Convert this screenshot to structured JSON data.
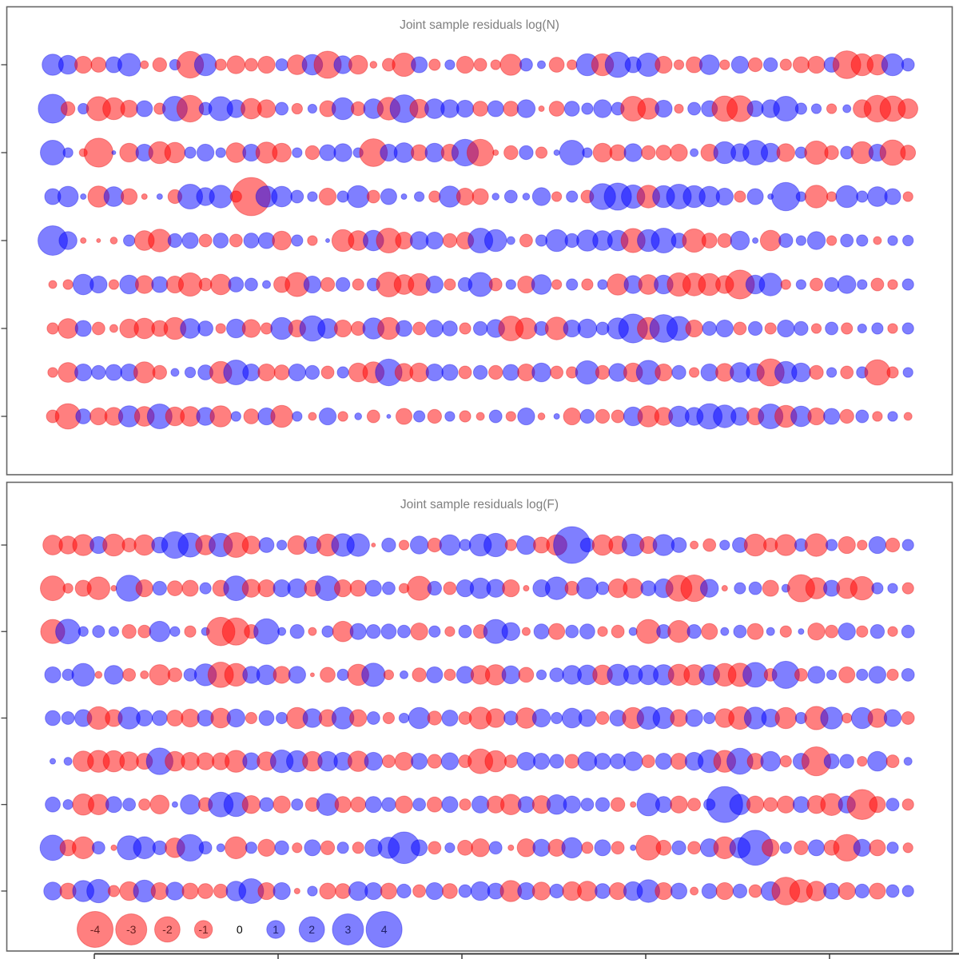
{
  "chart_data": {
    "type": "bubble",
    "description": "Two stacked bubble-residual panels; rows are ages (unlabeled axis ticks), columns are samples/years (unlabeled axis ticks). Red = negative residual, blue = positive residual; circle area proportional to |value|.",
    "colors": {
      "negative_fill": "rgba(255,0,0,0.5)",
      "positive_fill": "rgba(0,0,255,0.5)",
      "negative_stroke": "rgba(220,0,0,0.35)",
      "positive_stroke": "rgba(0,0,220,0.35)",
      "title_gray": "#7f7f7f",
      "panel_border": "#666666",
      "axis_dark": "#3b3b3b",
      "neg_label": "#6b2020",
      "pos_label": "#20206b",
      "zero_label": "#000000"
    },
    "legend": {
      "values": [
        -4,
        -3,
        -2,
        -1,
        0,
        1,
        2,
        3,
        4
      ]
    },
    "axes": {
      "y_ticks_per_panel": 5,
      "x_ticks_bottom": 5,
      "tick_labels_visible": false
    },
    "panels": [
      {
        "title": "Joint sample residuals log(N)",
        "rows": [
          [
            1.4,
            1.1,
            -0.9,
            -0.7,
            0.8,
            1.6,
            -0.2,
            -0.6,
            0.35,
            -2.2,
            1.5,
            -0.4,
            -1.0,
            -0.5,
            -0.9,
            0.45,
            -1.2,
            1.3,
            -2.3,
            1.0,
            -1.1,
            -0.15,
            -0.5,
            -1.7,
            0.8,
            -0.4,
            0.3,
            -0.9,
            -0.5,
            -0.3,
            -1.4,
            0.5,
            0.2,
            -0.7,
            -0.3,
            1.5,
            -1.5,
            2.0,
            0.8,
            1.7,
            -0.9,
            -0.3,
            -0.8,
            1.2,
            -0.3,
            0.9,
            -0.6,
            0.6,
            -0.4,
            -0.8,
            -0.9,
            0.7,
            -2.4,
            -1.5,
            -1.3,
            1.5,
            0.5
          ],
          [
            2.6,
            -0.6,
            0.35,
            -1.8,
            -1.5,
            -0.9,
            0.8,
            -0.4,
            1.9,
            -2.2,
            0.5,
            1.8,
            1.0,
            -1.3,
            -1.0,
            0.5,
            -0.35,
            0.25,
            -0.8,
            1.5,
            -0.6,
            1.2,
            -1.6,
            2.4,
            -1.1,
            1.2,
            1.0,
            0.9,
            -0.7,
            0.8,
            -0.7,
            1.0,
            -0.1,
            -0.7,
            0.7,
            0.4,
            1.0,
            0.5,
            -1.9,
            -1.4,
            0.9,
            -0.25,
            0.5,
            0.8,
            -2.0,
            -2.1,
            0.8,
            1.0,
            1.9,
            0.4,
            0.3,
            -0.3,
            0.2,
            -1.0,
            -2.2,
            -2.0,
            -1.2
          ],
          [
            1.9,
            0.3,
            -0.2,
            -2.6,
            0.05,
            -1.1,
            0.9,
            -1.5,
            -1.3,
            0.4,
            0.9,
            0.3,
            -1.2,
            0.9,
            -1.4,
            -1.1,
            0.3,
            -0.6,
            0.8,
            1.0,
            0.3,
            -2.4,
            0.9,
            1.2,
            -0.8,
            1.1,
            -0.9,
            2.2,
            -2.2,
            -0.1,
            -0.6,
            0.6,
            -0.4,
            0.1,
            1.9,
            0.3,
            -1.1,
            -0.8,
            1.0,
            -0.6,
            -0.7,
            -0.9,
            0.2,
            -0.9,
            1.5,
            1.0,
            1.9,
            1.1,
            -1.0,
            0.4,
            -1.7,
            -0.6,
            0.5,
            -1.5,
            0.9,
            -2.0,
            -0.7
          ],
          [
            0.8,
            1.3,
            0.1,
            -1.4,
            1.2,
            -0.8,
            -0.1,
            0.1,
            -0.6,
            1.9,
            1.0,
            1.6,
            -0.4,
            -4.5,
            1.4,
            1.3,
            0.5,
            0.3,
            -0.9,
            0.4,
            1.5,
            -0.5,
            0.8,
            0.1,
            0.3,
            -0.4,
            1.4,
            -0.9,
            -0.8,
            0.15,
            0.5,
            0.15,
            1.0,
            -0.3,
            0.4,
            -0.5,
            2.1,
            2.3,
            1.7,
            -1.6,
            1.5,
            1.9,
            1.5,
            1.3,
            0.9,
            -0.4,
            0.8,
            0.1,
            2.5,
            0.3,
            -1.6,
            -0.3,
            1.5,
            0.4,
            1.2,
            0.8,
            -0.3
          ],
          [
            2.7,
            1.0,
            -0.1,
            -0.05,
            -0.15,
            0.4,
            -1.2,
            -1.6,
            0.6,
            0.8,
            -0.5,
            0.7,
            -0.5,
            0.7,
            0.8,
            -1.1,
            0.4,
            -0.3,
            0.05,
            -1.5,
            -1.2,
            1.3,
            -1.9,
            -0.9,
            1.0,
            0.9,
            -0.6,
            -0.9,
            1.9,
            1.5,
            0.2,
            -0.5,
            0.4,
            1.5,
            0.6,
            1.4,
            1.2,
            1.3,
            -1.8,
            1.5,
            1.9,
            0.7,
            -1.7,
            -0.7,
            -0.6,
            1.1,
            0.1,
            -1.3,
            0.6,
            0.3,
            1.0,
            -0.3,
            0.5,
            0.4,
            -0.2,
            0.3,
            0.35
          ],
          [
            -0.2,
            -0.3,
            1.3,
            0.9,
            -0.3,
            1.1,
            -1.0,
            0.8,
            -0.9,
            -1.7,
            -0.5,
            -1.3,
            0.7,
            0.5,
            0.2,
            -0.8,
            -1.8,
            0.9,
            -0.6,
            0.6,
            -0.4,
            0.5,
            -1.9,
            -1.2,
            -1.5,
            0.9,
            -0.4,
            0.6,
            1.8,
            -0.5,
            0.3,
            -0.9,
            1.2,
            -0.3,
            0.4,
            -0.4,
            0.3,
            -1.4,
            1.0,
            -1.2,
            1.1,
            -1.7,
            -1.6,
            -1.5,
            -1.0,
            -2.6,
            1.1,
            1.6,
            -0.3,
            0.3,
            -0.5,
            0.6,
            1.0,
            0.3,
            -0.5,
            -0.3,
            0.4
          ],
          [
            -0.4,
            -1.2,
            0.8,
            -0.5,
            -0.2,
            -1.1,
            -1.3,
            -0.8,
            -1.5,
            1.2,
            0.7,
            -0.3,
            1.1,
            -1.0,
            -0.4,
            1.5,
            -0.9,
            2.0,
            1.2,
            -0.9,
            -0.6,
            1.4,
            -1.5,
            0.8,
            -0.5,
            0.9,
            0.7,
            -0.4,
            0.6,
            1.0,
            -1.9,
            -1.4,
            0.6,
            -1.6,
            0.9,
            1.1,
            0.5,
            1.4,
            2.6,
            -1.5,
            2.4,
            1.8,
            -0.9,
            0.6,
            0.9,
            -0.5,
            0.6,
            -0.4,
            0.9,
            0.6,
            -0.3,
            0.5,
            -0.4,
            0.25,
            0.4,
            -0.3,
            0.4
          ],
          [
            -0.3,
            -1.2,
            0.9,
            0.6,
            0.8,
            0.9,
            -1.4,
            -0.6,
            0.2,
            0.35,
            0.7,
            -1.5,
            1.9,
            0.9,
            -0.9,
            -0.7,
            0.9,
            0.6,
            -0.5,
            0.4,
            -1.1,
            -1.4,
            2.2,
            -1.0,
            -1.1,
            0.9,
            0.8,
            -0.5,
            0.6,
            -0.6,
            0.8,
            -0.9,
            1.1,
            -0.5,
            -0.4,
            1.7,
            -0.6,
            1.0,
            -1.1,
            1.8,
            -0.9,
            0.6,
            -0.3,
            0.9,
            -1.0,
            1.2,
            1.0,
            -2.3,
            1.5,
            1.1,
            -0.6,
            0.3,
            -0.5,
            0.4,
            -2.0,
            -0.4,
            0.3
          ],
          [
            -0.5,
            -2.0,
            0.7,
            -0.9,
            -1.0,
            1.4,
            -1.2,
            1.9,
            -1.1,
            -1.2,
            1.0,
            -1.4,
            0.3,
            -0.7,
            0.9,
            -1.5,
            0.3,
            -0.2,
            0.9,
            -0.3,
            0.15,
            -0.5,
            0.05,
            -0.8,
            0.4,
            -0.6,
            0.3,
            -0.4,
            -0.2,
            0.5,
            -0.3,
            0.9,
            -0.15,
            0.1,
            -0.9,
            0.6,
            -0.6,
            -0.5,
            1.1,
            -1.4,
            -1.0,
            1.3,
            1.0,
            2.0,
            1.6,
            1.0,
            -0.9,
            1.9,
            -1.5,
            1.3,
            -0.9,
            0.8,
            -0.6,
            0.5,
            -0.3,
            0.3,
            -0.2
          ]
        ]
      },
      {
        "title": "Joint sample residuals log(F)",
        "rows": [
          [
            -1.2,
            -1.0,
            -1.4,
            0.9,
            -1.5,
            -0.6,
            -1.3,
            0.8,
            2.2,
            1.8,
            -1.2,
            1.7,
            -1.9,
            -1.0,
            0.7,
            0.3,
            -1.1,
            0.9,
            -1.5,
            1.6,
            1.6,
            -0.05,
            0.6,
            -0.3,
            1.0,
            -0.6,
            1.3,
            0.4,
            1.5,
            1.7,
            -0.4,
            1.1,
            -0.8,
            -1.3,
            4.2,
            0.6,
            -1.3,
            -1.0,
            1.5,
            -0.9,
            1.4,
            0.7,
            -0.2,
            -0.5,
            0.3,
            0.7,
            -1.5,
            -0.6,
            -1.4,
            0.5,
            -1.6,
            0.4,
            -0.9,
            -0.3,
            0.9,
            -0.6,
            0.4
          ],
          [
            -1.9,
            -0.3,
            -0.8,
            -1.6,
            -0.1,
            2.1,
            -0.9,
            0.6,
            -0.7,
            -0.8,
            0.4,
            -0.8,
            1.9,
            -1.0,
            -0.9,
            0.9,
            1.1,
            -0.8,
            1.9,
            -0.9,
            -0.8,
            0.8,
            0.5,
            -0.3,
            -1.8,
            0.6,
            -0.5,
            0.9,
            1.3,
            1.0,
            -0.9,
            -0.1,
            0.9,
            1.6,
            -0.6,
            1.4,
            0.5,
            -1.1,
            -1.2,
            0.7,
            1.1,
            -2.1,
            -2.2,
            1.0,
            -0.1,
            0.4,
            0.5,
            -0.8,
            0.2,
            -2.3,
            -1.4,
            0.8,
            -1.3,
            -1.7,
            0.4,
            0.3,
            -0.4
          ],
          [
            -1.8,
            1.9,
            0.3,
            0.45,
            0.3,
            -0.6,
            -0.5,
            1.3,
            0.3,
            -0.4,
            0.2,
            -2.5,
            -2.3,
            -0.6,
            2.0,
            0.2,
            0.6,
            -0.2,
            0.4,
            -1.3,
            0.8,
            0.6,
            0.7,
            0.5,
            -0.9,
            0.4,
            -0.3,
            0.5,
            -0.6,
            1.8,
            1.0,
            -0.2,
            0.7,
            -0.8,
            0.5,
            0.7,
            -0.3,
            -0.5,
            0.2,
            -1.8,
            0.6,
            -1.5,
            0.6,
            -0.8,
            0.2,
            0.5,
            -0.8,
            0.2,
            -0.4,
            0.1,
            -0.9,
            -0.5,
            0.9,
            -0.4,
            0.6,
            -0.3,
            0.5
          ],
          [
            0.8,
            0.4,
            1.6,
            -0.15,
            1.1,
            -0.5,
            -0.2,
            -1.3,
            -0.6,
            0.5,
            1.5,
            -2.0,
            -1.6,
            0.9,
            1.2,
            -0.9,
            0.9,
            -0.05,
            -0.7,
            0.4,
            -1.4,
            1.7,
            -0.3,
            0.2,
            -0.6,
            0.8,
            -0.4,
            0.9,
            -1.1,
            -1.3,
            1.0,
            -0.7,
            0.3,
            0.6,
            1.1,
            1.2,
            -1.2,
            1.4,
            1.1,
            1.2,
            1.3,
            -1.4,
            -1.3,
            1.3,
            -1.6,
            -1.7,
            1.9,
            -0.5,
            2.3,
            -0.5,
            0.9,
            0.3,
            -0.8,
            0.4,
            0.9,
            -0.4,
            0.5
          ],
          [
            0.7,
            0.5,
            0.9,
            -1.6,
            -0.9,
            1.5,
            0.8,
            0.7,
            -0.8,
            -1.0,
            0.8,
            -1.2,
            1.0,
            -0.4,
            0.7,
            0.4,
            -1.4,
            1.1,
            -0.9,
            1.5,
            -0.9,
            0.5,
            -0.4,
            0.3,
            1.4,
            -0.6,
            0.8,
            -0.5,
            -1.5,
            -1.1,
            0.6,
            -1.3,
            1.0,
            0.4,
            1.2,
            0.9,
            -0.5,
            0.8,
            -1.4,
            1.6,
            1.4,
            -0.9,
            0.9,
            0.4,
            -1.1,
            -1.6,
            1.5,
            1.0,
            -1.4,
            0.4,
            -1.7,
            1.5,
            -0.3,
            1.4,
            -1.1,
            0.9,
            -0.5
          ],
          [
            0.1,
            0.2,
            -1.3,
            -1.5,
            -1.4,
            -1.1,
            -0.8,
            2.2,
            -1.2,
            -1.0,
            -0.9,
            -0.9,
            -1.5,
            0.9,
            -1.1,
            1.6,
            1.4,
            -1.2,
            1.2,
            1.0,
            -1.3,
            1.0,
            -0.5,
            -1.0,
            0.8,
            -0.6,
            0.9,
            -0.5,
            -1.9,
            -1.4,
            -0.5,
            1.0,
            0.8,
            0.6,
            -0.6,
            1.1,
            0.8,
            0.7,
            1.1,
            -0.5,
            0.8,
            -0.8,
            1.0,
            1.6,
            -1.5,
            2.1,
            -0.8,
            1.2,
            -0.4,
            0.8,
            -2.6,
            0.7,
            0.6,
            -0.3,
            1.2,
            -0.5,
            0.2
          ],
          [
            0.7,
            0.3,
            -1.4,
            -1.3,
            0.8,
            0.5,
            -0.4,
            -1.1,
            0.1,
            1.2,
            -0.6,
            1.9,
            1.8,
            -1.0,
            0.6,
            -0.9,
            0.4,
            -0.6,
            1.5,
            -0.8,
            -0.7,
            0.8,
            0.6,
            -0.9,
            0.5,
            -0.7,
            0.8,
            -0.4,
            0.9,
            -0.9,
            -1.3,
            0.8,
            -1.0,
            1.2,
            0.9,
            0.5,
            0.6,
            -0.6,
            -0.1,
            1.6,
            0.8,
            -0.9,
            -0.5,
            0.4,
            4.0,
            1.3,
            -0.9,
            -0.6,
            -0.9,
            0.8,
            -1.0,
            -1.5,
            0.9,
            -2.8,
            -0.8,
            0.5,
            -0.4
          ],
          [
            2.0,
            -0.8,
            -1.5,
            0.5,
            -0.1,
            1.8,
            1.5,
            0.6,
            -1.2,
            2.2,
            0.5,
            0.2,
            -1.5,
            0.4,
            -0.9,
            0.6,
            -0.3,
            0.8,
            -0.6,
            0.4,
            -0.4,
            0.9,
            1.4,
            3.1,
            0.8,
            -0.5,
            0.3,
            -0.7,
            -1.0,
            0.5,
            -0.1,
            -1.0,
            0.9,
            -0.9,
            1.3,
            -0.4,
            0.8,
            -0.5,
            0.1,
            -1.9,
            -0.7,
            0.6,
            -0.5,
            1.0,
            -1.5,
            1.3,
            3.8,
            -0.9,
            0.4,
            -0.6,
            0.8,
            -0.7,
            -2.2,
            0.9,
            -0.8,
            0.4,
            -0.3
          ],
          [
            1.0,
            -0.8,
            1.4,
            1.7,
            -0.4,
            -1.1,
            1.5,
            -0.9,
            1.0,
            -0.8,
            -0.7,
            -0.6,
            1.2,
            1.9,
            -0.9,
            0.9,
            -0.1,
            0.3,
            -0.8,
            -0.7,
            1.1,
            0.9,
            -0.8,
            0.6,
            -0.5,
            0.9,
            -0.7,
            0.5,
            1.1,
            0.8,
            -1.4,
            0.9,
            -1.0,
            0.6,
            -1.1,
            -1.2,
            0.7,
            -0.9,
            1.1,
            1.6,
            -0.9,
            0.8,
            -0.2,
            0.7,
            -0.9,
            0.6,
            -0.5,
            1.1,
            -2.4,
            -1.6,
            -1.2,
            0.8,
            -0.9,
            0.6,
            -0.8,
            0.5,
            0.4
          ]
        ]
      }
    ]
  }
}
